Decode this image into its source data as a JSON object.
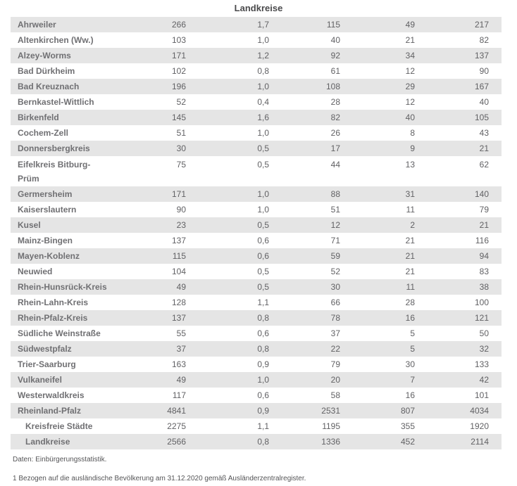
{
  "table": {
    "section_header": "Landkreise",
    "rows": [
      {
        "name": "Ahrweiler",
        "values": [
          "266",
          "1,7",
          "115",
          "49",
          "217"
        ]
      },
      {
        "name": "Altenkirchen (Ww.)",
        "values": [
          "103",
          "1,0",
          "40",
          "21",
          "82"
        ]
      },
      {
        "name": "Alzey-Worms",
        "values": [
          "171",
          "1,2",
          "92",
          "34",
          "137"
        ]
      },
      {
        "name": "Bad Dürkheim",
        "values": [
          "102",
          "0,8",
          "61",
          "12",
          "90"
        ]
      },
      {
        "name": "Bad Kreuznach",
        "values": [
          "196",
          "1,0",
          "108",
          "29",
          "167"
        ]
      },
      {
        "name": "Bernkastel-Wittlich",
        "values": [
          "52",
          "0,4",
          "28",
          "12",
          "40"
        ]
      },
      {
        "name": "Birkenfeld",
        "values": [
          "145",
          "1,6",
          "82",
          "40",
          "105"
        ]
      },
      {
        "name": "Cochem-Zell",
        "values": [
          "51",
          "1,0",
          "26",
          "8",
          "43"
        ]
      },
      {
        "name": "Donnersbergkreis",
        "values": [
          "30",
          "0,5",
          "17",
          "9",
          "21"
        ]
      },
      {
        "name": "Eifelkreis Bitburg-\nPrüm",
        "tall": true,
        "values": [
          "75",
          "0,5",
          "44",
          "13",
          "62"
        ]
      },
      {
        "name": "Germersheim",
        "values": [
          "171",
          "1,0",
          "88",
          "31",
          "140"
        ]
      },
      {
        "name": "Kaiserslautern",
        "values": [
          "90",
          "1,0",
          "51",
          "11",
          "79"
        ]
      },
      {
        "name": "Kusel",
        "values": [
          "23",
          "0,5",
          "12",
          "2",
          "21"
        ]
      },
      {
        "name": "Mainz-Bingen",
        "values": [
          "137",
          "0,6",
          "71",
          "21",
          "116"
        ]
      },
      {
        "name": "Mayen-Koblenz",
        "values": [
          "115",
          "0,6",
          "59",
          "21",
          "94"
        ]
      },
      {
        "name": "Neuwied",
        "values": [
          "104",
          "0,5",
          "52",
          "21",
          "83"
        ]
      },
      {
        "name": "Rhein-Hunsrück-Kreis",
        "values": [
          "49",
          "0,5",
          "30",
          "11",
          "38"
        ]
      },
      {
        "name": "Rhein-Lahn-Kreis",
        "values": [
          "128",
          "1,1",
          "66",
          "28",
          "100"
        ]
      },
      {
        "name": "Rhein-Pfalz-Kreis",
        "values": [
          "137",
          "0,8",
          "78",
          "16",
          "121"
        ]
      },
      {
        "name": "Südliche Weinstraße",
        "values": [
          "55",
          "0,6",
          "37",
          "5",
          "50"
        ]
      },
      {
        "name": "Südwestpfalz",
        "values": [
          "37",
          "0,8",
          "22",
          "5",
          "32"
        ]
      },
      {
        "name": "Trier-Saarburg",
        "values": [
          "163",
          "0,9",
          "79",
          "30",
          "133"
        ]
      },
      {
        "name": "Vulkaneifel",
        "values": [
          "49",
          "1,0",
          "20",
          "7",
          "42"
        ]
      },
      {
        "name": "Westerwaldkreis",
        "values": [
          "117",
          "0,6",
          "58",
          "16",
          "101"
        ]
      },
      {
        "name": "Rheinland-Pfalz",
        "values": [
          "4841",
          "0,9",
          "2531",
          "807",
          "4034"
        ]
      },
      {
        "name": "Kreisfreie Städte",
        "indent": true,
        "values": [
          "2275",
          "1,1",
          "1195",
          "355",
          "1920"
        ]
      },
      {
        "name": "Landkreise",
        "indent": true,
        "values": [
          "2566",
          "0,8",
          "1336",
          "452",
          "2114"
        ]
      }
    ]
  },
  "footer": {
    "source": "Daten: Einbürgerungsstatistik.",
    "footnote1": "1 Bezogen auf die ausländische Bevölkerung am 31.12.2020 gemäß Ausländerzentralregister."
  },
  "colors": {
    "row_alt_bg": "#e5e5e5",
    "name_text": "#707073",
    "number_text": "#616164",
    "header_text": "#4a4a4c",
    "footnote_text": "#545456"
  }
}
